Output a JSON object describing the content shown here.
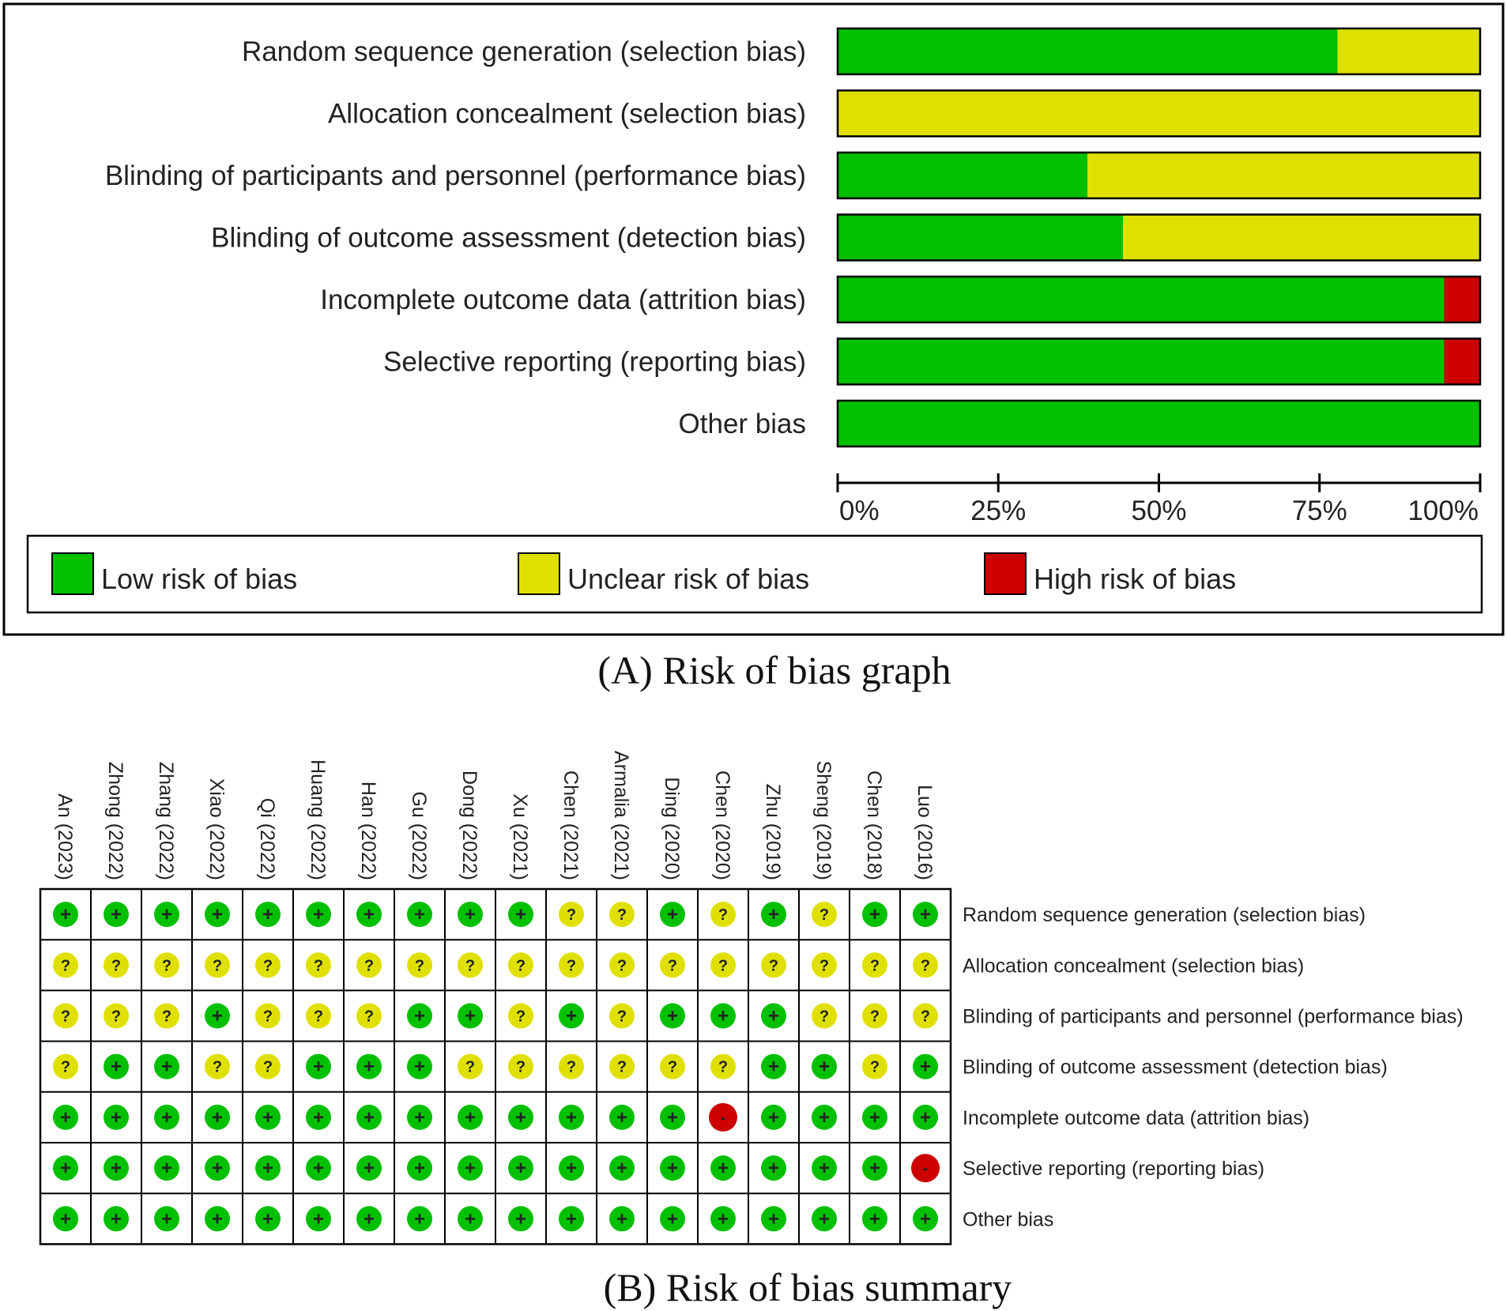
{
  "colors": {
    "low": "#00c000",
    "unclear": "#e0e000",
    "high": "#cc0000"
  },
  "legend": {
    "low": "Low risk of bias",
    "unclear": "Unclear risk of bias",
    "high": "High risk of bias"
  },
  "captions": {
    "graph": "(A) Risk of bias graph",
    "summary": "(B) Risk of bias summary"
  },
  "chart_data": [
    {
      "type": "bar",
      "orientation": "horizontal-stacked-percent",
      "title": "(A) Risk of bias graph",
      "categories": [
        "Random sequence generation (selection bias)",
        "Allocation concealment (selection bias)",
        "Blinding of participants and personnel (performance bias)",
        "Blinding of outcome assessment (detection bias)",
        "Incomplete outcome data (attrition bias)",
        "Selective reporting (reporting bias)",
        "Other bias"
      ],
      "series": [
        {
          "name": "Low risk of bias",
          "key": "low",
          "values": [
            77.8,
            0,
            38.9,
            44.4,
            94.4,
            94.4,
            100
          ]
        },
        {
          "name": "Unclear risk of bias",
          "key": "unclear",
          "values": [
            22.2,
            100,
            61.1,
            55.6,
            0,
            0,
            0
          ]
        },
        {
          "name": "High risk of bias",
          "key": "high",
          "values": [
            0,
            0,
            0,
            0,
            5.6,
            5.6,
            0
          ]
        }
      ],
      "xticks": [
        "0%",
        "25%",
        "50%",
        "75%",
        "100%"
      ],
      "xlim": [
        0,
        100
      ],
      "legend_position": "bottom"
    },
    {
      "type": "table",
      "title": "(B) Risk of bias summary",
      "studies": [
        "An (2023)",
        "Zhong (2022)",
        "Zhang (2022)",
        "Xiao (2022)",
        "Qi (2022)",
        "Huang (2022)",
        "Han (2022)",
        "Gu (2022)",
        "Dong (2022)",
        "Xu (2021)",
        "Chen (2021)",
        "Armalia (2021)",
        "Ding (2020)",
        "Chen (2020)",
        "Zhu (2019)",
        "Sheng (2019)",
        "Chen (2018)",
        "Luo (2016)"
      ],
      "domains": [
        "Random sequence generation (selection bias)",
        "Allocation concealment (selection bias)",
        "Blinding of participants and personnel (performance bias)",
        "Blinding of outcome assessment (detection bias)",
        "Incomplete outcome data (attrition bias)",
        "Selective reporting (reporting bias)",
        "Other bias"
      ],
      "symbols": {
        "low": "+",
        "unclear": "?",
        "high": "-"
      },
      "judgements": [
        [
          "low",
          "low",
          "low",
          "low",
          "low",
          "low",
          "low",
          "low",
          "low",
          "low",
          "unclear",
          "unclear",
          "low",
          "unclear",
          "low",
          "unclear",
          "low",
          "low"
        ],
        [
          "unclear",
          "unclear",
          "unclear",
          "unclear",
          "unclear",
          "unclear",
          "unclear",
          "unclear",
          "unclear",
          "unclear",
          "unclear",
          "unclear",
          "unclear",
          "unclear",
          "unclear",
          "unclear",
          "unclear",
          "unclear"
        ],
        [
          "unclear",
          "unclear",
          "unclear",
          "low",
          "unclear",
          "unclear",
          "unclear",
          "low",
          "low",
          "unclear",
          "low",
          "unclear",
          "low",
          "low",
          "low",
          "unclear",
          "unclear",
          "unclear"
        ],
        [
          "unclear",
          "low",
          "low",
          "unclear",
          "unclear",
          "low",
          "low",
          "low",
          "unclear",
          "unclear",
          "unclear",
          "unclear",
          "unclear",
          "unclear",
          "low",
          "low",
          "unclear",
          "low"
        ],
        [
          "low",
          "low",
          "low",
          "low",
          "low",
          "low",
          "low",
          "low",
          "low",
          "low",
          "low",
          "low",
          "low",
          "high",
          "low",
          "low",
          "low",
          "low"
        ],
        [
          "low",
          "low",
          "low",
          "low",
          "low",
          "low",
          "low",
          "low",
          "low",
          "low",
          "low",
          "low",
          "low",
          "low",
          "low",
          "low",
          "low",
          "high"
        ],
        [
          "low",
          "low",
          "low",
          "low",
          "low",
          "low",
          "low",
          "low",
          "low",
          "low",
          "low",
          "low",
          "low",
          "low",
          "low",
          "low",
          "low",
          "low"
        ]
      ]
    }
  ]
}
